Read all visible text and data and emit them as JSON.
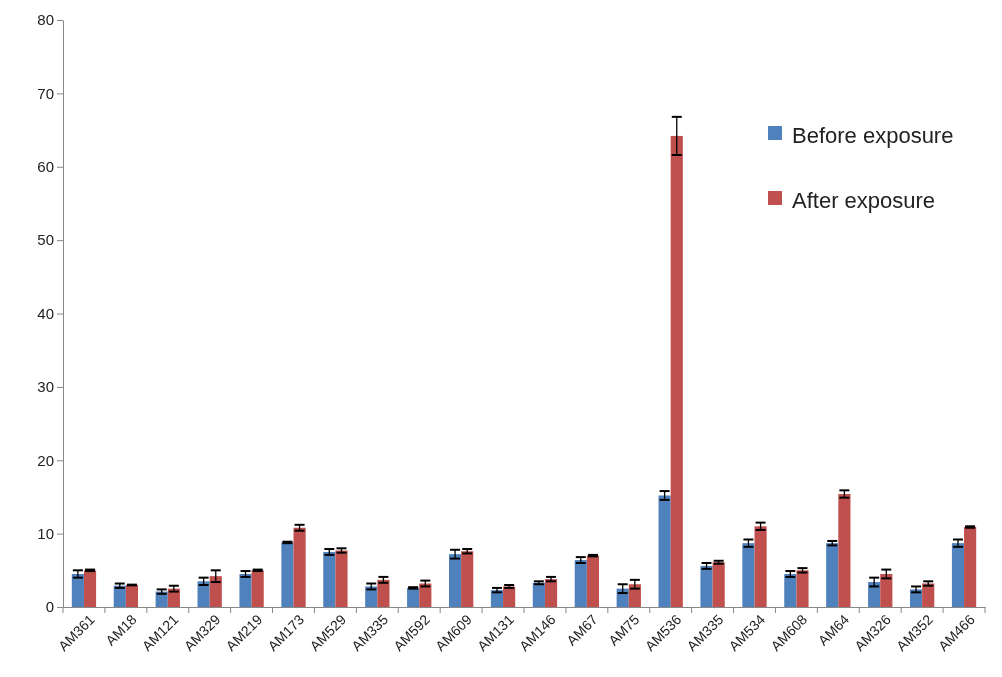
{
  "chart_data": {
    "type": "bar",
    "categories": [
      "AM361",
      "AM18",
      "AM121",
      "AM329",
      "AM219",
      "AM173",
      "AM529",
      "AM335",
      "AM592",
      "AM609",
      "AM131",
      "AM146",
      "AM67",
      "AM75",
      "AM536",
      "AM335",
      "AM534",
      "AM608",
      "AM64",
      "AM326",
      "AM352",
      "AM466"
    ],
    "series": [
      {
        "name": "Before exposure",
        "color": "#4f81bd",
        "values": [
          4.5,
          2.9,
          2.1,
          3.5,
          4.5,
          8.8,
          7.5,
          2.8,
          2.6,
          7.2,
          2.3,
          3.3,
          6.4,
          2.5,
          15.2,
          5.6,
          8.7,
          4.5,
          8.7,
          3.4,
          2.4,
          8.7
        ],
        "errors": [
          0.5,
          0.3,
          0.3,
          0.5,
          0.4,
          0.1,
          0.4,
          0.4,
          0.1,
          0.6,
          0.3,
          0.2,
          0.4,
          0.6,
          0.6,
          0.4,
          0.5,
          0.4,
          0.3,
          0.6,
          0.4,
          0.5
        ]
      },
      {
        "name": "After exposure",
        "color": "#c0504d",
        "values": [
          5.0,
          3.0,
          2.5,
          4.2,
          5.0,
          10.8,
          7.7,
          3.7,
          3.2,
          7.6,
          2.8,
          3.8,
          7.0,
          3.1,
          64.2,
          6.1,
          11.0,
          5.0,
          15.4,
          4.5,
          3.2,
          10.9
        ],
        "errors": [
          0.1,
          0.05,
          0.4,
          0.8,
          0.1,
          0.4,
          0.3,
          0.4,
          0.4,
          0.3,
          0.2,
          0.3,
          0.1,
          0.6,
          2.6,
          0.2,
          0.5,
          0.3,
          0.5,
          0.6,
          0.3,
          0.1
        ]
      }
    ],
    "ylim": [
      0,
      80
    ],
    "yticks": [
      0,
      10,
      20,
      30,
      40,
      50,
      60,
      70,
      80
    ],
    "grid": false,
    "legend": "right"
  }
}
